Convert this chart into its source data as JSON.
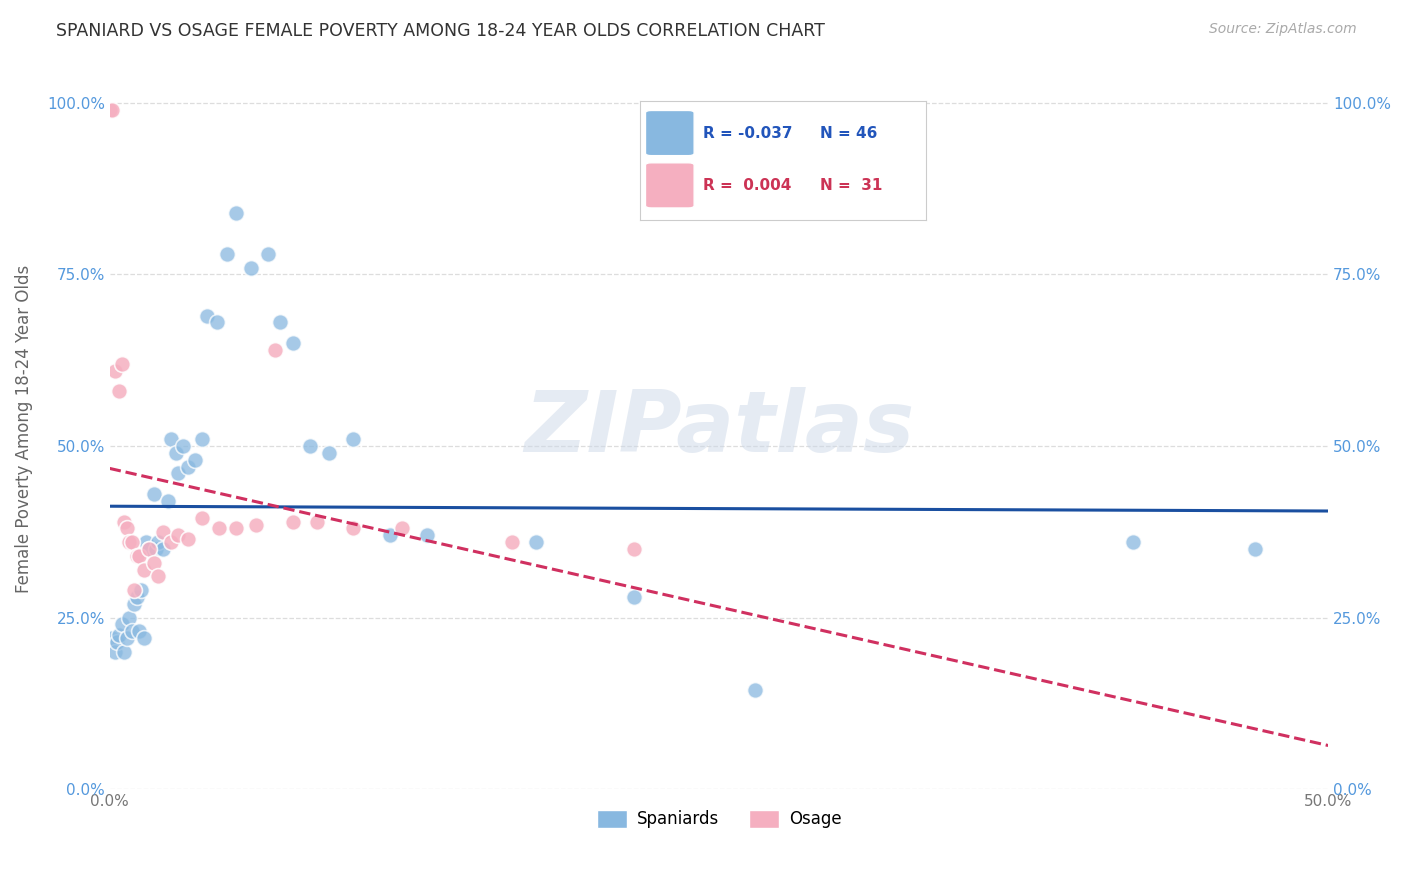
{
  "title": "SPANIARD VS OSAGE FEMALE POVERTY AMONG 18-24 YEAR OLDS CORRELATION CHART",
  "source": "Source: ZipAtlas.com",
  "ylabel": "Female Poverty Among 18-24 Year Olds",
  "xlim": [
    0.0,
    0.5
  ],
  "ylim": [
    0.0,
    1.05
  ],
  "yticks": [
    0.0,
    0.25,
    0.5,
    0.75,
    1.0
  ],
  "yticklabels": [
    "0.0%",
    "25.0%",
    "50.0%",
    "75.0%",
    "100.0%"
  ],
  "legend_labels": [
    "Spaniards",
    "Osage"
  ],
  "blue_R": "-0.037",
  "blue_N": "46",
  "pink_R": "0.004",
  "pink_N": "31",
  "blue_color": "#88b8e0",
  "pink_color": "#f5afc0",
  "blue_line_color": "#1a4fa0",
  "pink_line_color": "#d03060",
  "watermark": "ZIPatlas",
  "spaniards_x": [
    0.001,
    0.002,
    0.003,
    0.004,
    0.005,
    0.006,
    0.007,
    0.008,
    0.009,
    0.01,
    0.011,
    0.012,
    0.013,
    0.014,
    0.015,
    0.016,
    0.018,
    0.019,
    0.02,
    0.022,
    0.024,
    0.025,
    0.027,
    0.028,
    0.03,
    0.032,
    0.035,
    0.038,
    0.04,
    0.044,
    0.048,
    0.052,
    0.058,
    0.065,
    0.07,
    0.075,
    0.082,
    0.09,
    0.1,
    0.115,
    0.13,
    0.175,
    0.215,
    0.265,
    0.42,
    0.47
  ],
  "spaniards_y": [
    0.22,
    0.2,
    0.215,
    0.225,
    0.24,
    0.2,
    0.22,
    0.25,
    0.23,
    0.27,
    0.28,
    0.23,
    0.29,
    0.22,
    0.36,
    0.35,
    0.43,
    0.35,
    0.36,
    0.35,
    0.42,
    0.51,
    0.49,
    0.46,
    0.5,
    0.47,
    0.48,
    0.51,
    0.69,
    0.68,
    0.78,
    0.84,
    0.76,
    0.78,
    0.68,
    0.65,
    0.5,
    0.49,
    0.51,
    0.37,
    0.37,
    0.36,
    0.28,
    0.145,
    0.36,
    0.35
  ],
  "osage_x": [
    0.0,
    0.001,
    0.002,
    0.004,
    0.005,
    0.006,
    0.007,
    0.008,
    0.009,
    0.01,
    0.011,
    0.012,
    0.014,
    0.016,
    0.018,
    0.02,
    0.022,
    0.025,
    0.028,
    0.032,
    0.038,
    0.045,
    0.052,
    0.06,
    0.068,
    0.075,
    0.085,
    0.1,
    0.12,
    0.165,
    0.215
  ],
  "osage_y": [
    0.99,
    0.99,
    0.61,
    0.58,
    0.62,
    0.39,
    0.38,
    0.36,
    0.36,
    0.29,
    0.34,
    0.34,
    0.32,
    0.35,
    0.33,
    0.31,
    0.375,
    0.36,
    0.37,
    0.365,
    0.395,
    0.38,
    0.38,
    0.385,
    0.64,
    0.39,
    0.39,
    0.38,
    0.38,
    0.36,
    0.35
  ]
}
